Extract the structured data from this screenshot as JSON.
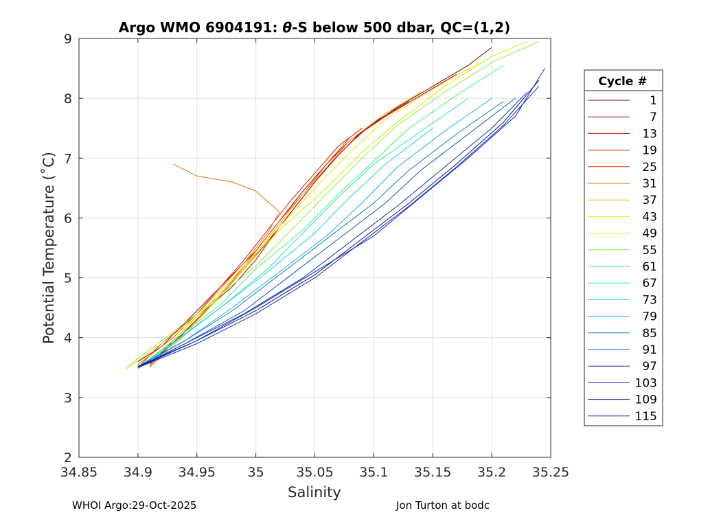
{
  "chart_data": {
    "type": "line",
    "title_prefix": "Argo WMO 6904191: ",
    "title_symbol": "θ",
    "title_suffix": "-S below 500 dbar,  QC=(1,2)",
    "xlabel": "Salinity",
    "ylabel": "Potential Temperature (˚C)",
    "xlim": [
      34.85,
      35.25
    ],
    "ylim": [
      2,
      9
    ],
    "xticks": [
      34.85,
      34.9,
      34.95,
      35,
      35.05,
      35.1,
      35.15,
      35.2,
      35.25
    ],
    "xtick_labels": [
      "34.85",
      "34.9",
      "34.95",
      "35",
      "35.05",
      "35.1",
      "35.15",
      "35.2",
      "35.25"
    ],
    "yticks": [
      2,
      3,
      4,
      5,
      6,
      7,
      8,
      9
    ],
    "ytick_labels": [
      "2",
      "3",
      "4",
      "5",
      "6",
      "7",
      "8",
      "9"
    ],
    "grid": true,
    "legend_title": "Cycle #",
    "legend_position": "right",
    "legend_entries": [
      {
        "label": "1",
        "color": "#800000"
      },
      {
        "label": "7",
        "color": "#a00000"
      },
      {
        "label": "13",
        "color": "#c80000"
      },
      {
        "label": "19",
        "color": "#e61400"
      },
      {
        "label": "25",
        "color": "#f03c00"
      },
      {
        "label": "31",
        "color": "#e67800"
      },
      {
        "label": "37",
        "color": "#f0b400"
      },
      {
        "label": "43",
        "color": "#f5e600"
      },
      {
        "label": "49",
        "color": "#c8f000"
      },
      {
        "label": "55",
        "color": "#8cf03c"
      },
      {
        "label": "61",
        "color": "#46f078"
      },
      {
        "label": "67",
        "color": "#1ee6b4"
      },
      {
        "label": "73",
        "color": "#1ed2e6"
      },
      {
        "label": "79",
        "color": "#1eaaf0"
      },
      {
        "label": "85",
        "color": "#1478d2"
      },
      {
        "label": "91",
        "color": "#0a50c8"
      },
      {
        "label": "97",
        "color": "#0a32b4"
      },
      {
        "label": "103",
        "color": "#0a28d2"
      },
      {
        "label": "109",
        "color": "#08187a"
      },
      {
        "label": "115",
        "color": "#0a2ab4"
      }
    ],
    "series": [
      {
        "name": "1",
        "color": "#800000",
        "points": [
          [
            34.91,
            3.58
          ],
          [
            34.93,
            3.9
          ],
          [
            34.95,
            4.3
          ],
          [
            34.97,
            4.7
          ],
          [
            34.99,
            5.15
          ],
          [
            35.01,
            5.6
          ],
          [
            35.03,
            6.1
          ],
          [
            35.05,
            6.6
          ],
          [
            35.07,
            7.05
          ],
          [
            35.09,
            7.45
          ],
          [
            35.12,
            7.85
          ],
          [
            35.15,
            8.2
          ],
          [
            35.18,
            8.55
          ],
          [
            35.2,
            8.85
          ]
        ]
      },
      {
        "name": "7",
        "color": "#a00000",
        "points": [
          [
            34.9,
            3.6
          ],
          [
            34.92,
            3.85
          ],
          [
            34.94,
            4.25
          ],
          [
            34.96,
            4.65
          ],
          [
            34.98,
            5.05
          ],
          [
            35.0,
            5.45
          ],
          [
            35.02,
            5.95
          ],
          [
            35.04,
            6.45
          ],
          [
            35.06,
            6.9
          ],
          [
            35.08,
            7.3
          ],
          [
            35.11,
            7.7
          ],
          [
            35.14,
            8.05
          ],
          [
            35.17,
            8.4
          ]
        ]
      },
      {
        "name": "13",
        "color": "#c80000",
        "points": [
          [
            34.91,
            3.55
          ],
          [
            34.93,
            3.95
          ],
          [
            34.95,
            4.35
          ],
          [
            34.98,
            4.85
          ],
          [
            35.0,
            5.3
          ],
          [
            35.02,
            5.85
          ],
          [
            35.04,
            6.35
          ],
          [
            35.06,
            6.85
          ],
          [
            35.08,
            7.25
          ],
          [
            35.1,
            7.6
          ],
          [
            35.13,
            7.95
          ]
        ]
      },
      {
        "name": "19",
        "color": "#e61400",
        "points": [
          [
            34.9,
            3.5
          ],
          [
            34.92,
            3.9
          ],
          [
            34.95,
            4.4
          ],
          [
            34.97,
            4.85
          ],
          [
            34.99,
            5.3
          ],
          [
            35.01,
            5.8
          ],
          [
            35.03,
            6.3
          ],
          [
            35.05,
            6.75
          ],
          [
            35.07,
            7.2
          ],
          [
            35.09,
            7.5
          ]
        ]
      },
      {
        "name": "25",
        "color": "#f03c00",
        "points": [
          [
            34.91,
            3.52
          ],
          [
            34.93,
            3.92
          ],
          [
            34.96,
            4.5
          ],
          [
            34.98,
            4.95
          ],
          [
            35.0,
            5.45
          ],
          [
            35.02,
            5.95
          ],
          [
            35.04,
            6.4
          ],
          [
            35.06,
            6.9
          ],
          [
            35.08,
            7.35
          ]
        ]
      },
      {
        "name": "31",
        "color": "#e67800",
        "points": [
          [
            34.9,
            3.55
          ],
          [
            34.93,
            4.0
          ],
          [
            34.96,
            4.6
          ],
          [
            34.99,
            5.25
          ],
          [
            35.01,
            5.75
          ],
          [
            35.02,
            6.1
          ],
          [
            35.0,
            6.45
          ],
          [
            34.98,
            6.6
          ],
          [
            34.95,
            6.7
          ],
          [
            34.93,
            6.9
          ]
        ]
      },
      {
        "name": "37",
        "color": "#f0b400",
        "points": [
          [
            34.91,
            3.5
          ],
          [
            34.94,
            4.05
          ],
          [
            34.97,
            4.7
          ],
          [
            35.0,
            5.4
          ],
          [
            35.02,
            5.9
          ],
          [
            35.04,
            6.4
          ],
          [
            35.06,
            6.85
          ],
          [
            35.08,
            7.3
          ],
          [
            35.11,
            7.75
          ],
          [
            35.14,
            8.1
          ]
        ]
      },
      {
        "name": "43",
        "color": "#f5e600",
        "points": [
          [
            34.9,
            3.48
          ],
          [
            34.93,
            3.95
          ],
          [
            34.96,
            4.55
          ],
          [
            34.99,
            5.2
          ],
          [
            35.02,
            5.85
          ],
          [
            35.05,
            6.5
          ],
          [
            35.08,
            7.1
          ],
          [
            35.11,
            7.65
          ],
          [
            35.15,
            8.15
          ],
          [
            35.19,
            8.6
          ]
        ]
      },
      {
        "name": "49",
        "color": "#c8f000",
        "points": [
          [
            34.89,
            3.47
          ],
          [
            34.92,
            3.9
          ],
          [
            34.96,
            4.5
          ],
          [
            34.99,
            5.15
          ],
          [
            35.02,
            5.8
          ],
          [
            35.06,
            6.5
          ],
          [
            35.09,
            7.1
          ],
          [
            35.12,
            7.6
          ],
          [
            35.16,
            8.2
          ],
          [
            35.2,
            8.7
          ],
          [
            35.23,
            8.95
          ]
        ]
      },
      {
        "name": "55",
        "color": "#8cf03c",
        "points": [
          [
            34.89,
            3.5
          ],
          [
            34.92,
            3.95
          ],
          [
            34.96,
            4.55
          ],
          [
            35.0,
            5.2
          ],
          [
            35.03,
            5.8
          ],
          [
            35.06,
            6.4
          ],
          [
            35.09,
            7.0
          ],
          [
            35.12,
            7.55
          ],
          [
            35.16,
            8.1
          ],
          [
            35.2,
            8.6
          ],
          [
            35.24,
            8.95
          ]
        ]
      },
      {
        "name": "61",
        "color": "#46f078",
        "points": [
          [
            34.9,
            3.5
          ],
          [
            34.93,
            3.95
          ],
          [
            34.97,
            4.55
          ],
          [
            35.0,
            5.15
          ],
          [
            35.04,
            5.8
          ],
          [
            35.07,
            6.4
          ],
          [
            35.1,
            6.95
          ],
          [
            35.13,
            7.5
          ],
          [
            35.17,
            8.05
          ],
          [
            35.21,
            8.55
          ]
        ]
      },
      {
        "name": "67",
        "color": "#1ee6b4",
        "points": [
          [
            34.9,
            3.48
          ],
          [
            34.93,
            3.9
          ],
          [
            34.97,
            4.5
          ],
          [
            35.01,
            5.15
          ],
          [
            35.04,
            5.75
          ],
          [
            35.07,
            6.35
          ],
          [
            35.1,
            6.9
          ],
          [
            35.14,
            7.45
          ],
          [
            35.18,
            8.0
          ]
        ]
      },
      {
        "name": "73",
        "color": "#1ed2e6",
        "points": [
          [
            34.9,
            3.5
          ],
          [
            34.93,
            3.92
          ],
          [
            34.97,
            4.5
          ],
          [
            35.01,
            5.1
          ],
          [
            35.05,
            5.75
          ],
          [
            35.08,
            6.35
          ],
          [
            35.11,
            6.9
          ],
          [
            35.15,
            7.5
          ]
        ]
      },
      {
        "name": "79",
        "color": "#1eaaf0",
        "points": [
          [
            34.9,
            3.5
          ],
          [
            34.94,
            3.95
          ],
          [
            34.98,
            4.5
          ],
          [
            35.02,
            5.1
          ],
          [
            35.06,
            5.7
          ],
          [
            35.09,
            6.25
          ],
          [
            35.12,
            6.85
          ],
          [
            35.16,
            7.45
          ],
          [
            35.2,
            8.0
          ]
        ]
      },
      {
        "name": "85",
        "color": "#1478d2",
        "points": [
          [
            34.9,
            3.52
          ],
          [
            34.94,
            3.95
          ],
          [
            34.98,
            4.45
          ],
          [
            35.02,
            5.05
          ],
          [
            35.06,
            5.65
          ],
          [
            35.1,
            6.25
          ],
          [
            35.13,
            6.8
          ],
          [
            35.17,
            7.4
          ],
          [
            35.21,
            7.95
          ]
        ]
      },
      {
        "name": "91",
        "color": "#0a50c8",
        "points": [
          [
            34.9,
            3.5
          ],
          [
            34.94,
            3.9
          ],
          [
            34.99,
            4.45
          ],
          [
            35.03,
            5.05
          ],
          [
            35.07,
            5.65
          ],
          [
            35.11,
            6.25
          ],
          [
            35.14,
            6.8
          ],
          [
            35.18,
            7.4
          ],
          [
            35.22,
            8.0
          ]
        ]
      },
      {
        "name": "97",
        "color": "#0a32b4",
        "points": [
          [
            34.9,
            3.5
          ],
          [
            34.94,
            3.9
          ],
          [
            34.99,
            4.4
          ],
          [
            35.04,
            5.0
          ],
          [
            35.08,
            5.6
          ],
          [
            35.12,
            6.2
          ],
          [
            35.16,
            6.85
          ],
          [
            35.2,
            7.5
          ],
          [
            35.23,
            8.1
          ]
        ]
      },
      {
        "name": "103",
        "color": "#0a28d2",
        "points": [
          [
            34.9,
            3.5
          ],
          [
            34.95,
            3.9
          ],
          [
            35.0,
            4.4
          ],
          [
            35.05,
            5.0
          ],
          [
            35.09,
            5.6
          ],
          [
            35.13,
            6.2
          ],
          [
            35.17,
            6.85
          ],
          [
            35.21,
            7.55
          ],
          [
            35.24,
            8.2
          ]
        ]
      },
      {
        "name": "109",
        "color": "#08187a",
        "points": [
          [
            34.9,
            3.52
          ],
          [
            34.95,
            3.95
          ],
          [
            35.0,
            4.45
          ],
          [
            35.05,
            5.05
          ],
          [
            35.09,
            5.65
          ],
          [
            35.13,
            6.25
          ],
          [
            35.17,
            6.9
          ],
          [
            35.21,
            7.6
          ],
          [
            35.24,
            8.3
          ]
        ]
      },
      {
        "name": "115",
        "color": "#0a2ab4",
        "points": [
          [
            34.9,
            3.5
          ],
          [
            34.95,
            3.95
          ],
          [
            35.0,
            4.5
          ],
          [
            35.05,
            5.1
          ],
          [
            35.1,
            5.7
          ],
          [
            35.14,
            6.35
          ],
          [
            35.18,
            7.0
          ],
          [
            35.22,
            7.7
          ],
          [
            35.245,
            8.5
          ]
        ]
      }
    ]
  },
  "footer": {
    "left": "WHOI Argo:29-Oct-2025",
    "right": "Jon Turton at bodc"
  }
}
